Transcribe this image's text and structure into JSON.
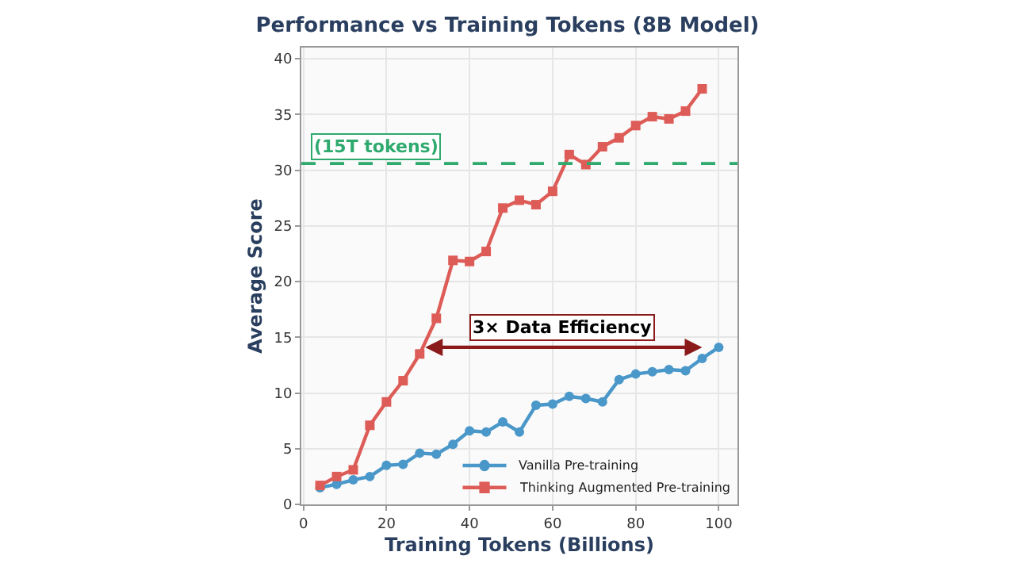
{
  "chart_data": {
    "type": "line",
    "title": "Performance vs Training Tokens (8B Model)",
    "xlabel": "Training Tokens (Billions)",
    "ylabel": "Average Score",
    "x": [
      4,
      8,
      12,
      16,
      20,
      24,
      28,
      32,
      36,
      40,
      44,
      48,
      52,
      56,
      60,
      64,
      68,
      72,
      76,
      80,
      84,
      88,
      92,
      96,
      100
    ],
    "series": [
      {
        "name": "Vanilla Pre-training",
        "color": "#4a97c9",
        "marker": "circle",
        "values": [
          1.5,
          1.8,
          2.2,
          2.5,
          3.5,
          3.6,
          4.6,
          4.5,
          5.4,
          6.6,
          6.5,
          7.4,
          6.5,
          8.9,
          9.0,
          9.7,
          9.5,
          9.2,
          11.2,
          11.7,
          11.9,
          12.1,
          12.0,
          13.1,
          14.1
        ]
      },
      {
        "name": "Thinking Augmented Pre-training",
        "color": "#dd5c57",
        "marker": "square",
        "x": [
          4,
          8,
          12,
          16,
          20,
          24,
          28,
          32,
          36,
          40,
          44,
          48,
          52,
          56,
          60,
          64,
          68,
          72,
          76,
          80,
          84,
          88,
          92,
          96
        ],
        "values": [
          1.7,
          2.5,
          3.1,
          7.1,
          9.2,
          11.1,
          13.5,
          16.7,
          21.9,
          21.8,
          22.7,
          26.6,
          27.3,
          26.9,
          28.1,
          31.4,
          30.5,
          32.1,
          32.9,
          34.0,
          34.8,
          34.6,
          35.3,
          37.3
        ]
      }
    ],
    "annotations": [
      "3× Data Efficiency"
    ],
    "ref_lines": [
      {
        "axis": "y",
        "value": 30.6,
        "label": "(15T tokens)",
        "color": "#2eaa6e",
        "line_style": "dashed"
      }
    ],
    "xlim": [
      -0.5,
      104.5
    ],
    "xticks": [
      0,
      20,
      40,
      60,
      80,
      100
    ],
    "ylim": [
      0,
      41
    ],
    "yticks": [
      0,
      5,
      10,
      15,
      20,
      25,
      30,
      35,
      40
    ],
    "grid": true,
    "legend": "bottom right",
    "line_style": "solid"
  }
}
